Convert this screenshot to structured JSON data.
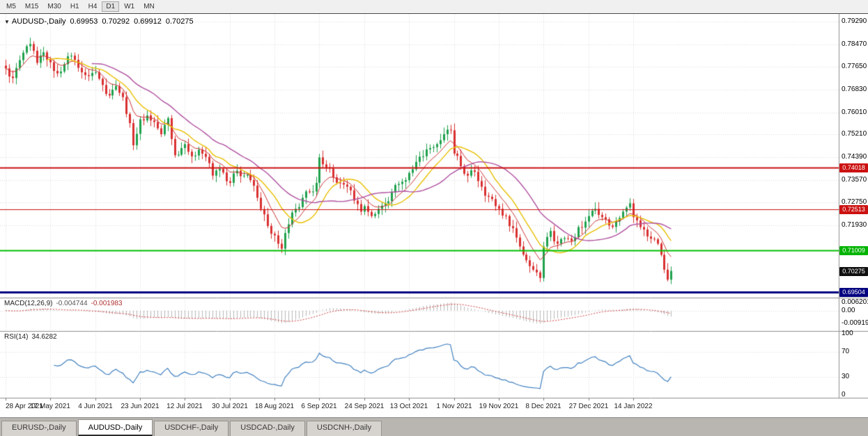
{
  "toolbar": {
    "timeframes": [
      "M5",
      "M15",
      "M30",
      "H1",
      "H4",
      "D1",
      "W1",
      "MN"
    ],
    "active": "D1"
  },
  "chart_header": {
    "collapse_icon": "▼",
    "symbol": "AUDUSD-,Daily",
    "open": "0.69953",
    "high": "0.70292",
    "low": "0.69912",
    "close": "0.70275"
  },
  "price_axis": {
    "labels": [
      "0.79290",
      "0.78470",
      "0.77650",
      "0.76830",
      "0.76010",
      "0.75210",
      "0.74390",
      "0.73570",
      "0.72750",
      "0.71930"
    ],
    "badges": [
      {
        "name": "resistance-upper",
        "text": "0.74018",
        "price": 0.74018,
        "bg": "#cc1111"
      },
      {
        "name": "resistance-lower",
        "text": "0.72513",
        "price": 0.72513,
        "bg": "#cc1111"
      },
      {
        "name": "support-green",
        "text": "0.71009",
        "price": 0.71009,
        "bg": "#00b400"
      },
      {
        "name": "current-price",
        "text": "0.70275",
        "price": 0.70275,
        "bg": "#101010"
      },
      {
        "name": "support-navy",
        "text": "0.69504",
        "price": 0.69504,
        "bg": "#000080"
      }
    ]
  },
  "hlines": [
    {
      "price": 0.74018,
      "color": "#cc1111",
      "width": 2
    },
    {
      "price": 0.72513,
      "color": "#cc1111",
      "width": 1
    },
    {
      "price": 0.71009,
      "color": "#00c000",
      "width": 2
    },
    {
      "price": 0.69504,
      "color": "#000080",
      "width": 3
    }
  ],
  "macd_panel": {
    "label": "MACD(12,26,9)",
    "main_value": "-0.004744",
    "signal_value": "-0.001983",
    "axis_labels": [
      {
        "text": "0.006201",
        "value": 0.006201
      },
      {
        "text": "0.00",
        "value": 0
      },
      {
        "text": "-0.009197",
        "value": -0.009197
      }
    ]
  },
  "rsi_panel": {
    "label": "RSI(14)",
    "value": "34.6282",
    "levels": [
      70,
      30
    ],
    "axis_labels": [
      {
        "text": "100",
        "value": 100
      },
      {
        "text": "70",
        "value": 70
      },
      {
        "text": "30",
        "value": 30
      },
      {
        "text": "0",
        "value": 0
      }
    ]
  },
  "date_axis": {
    "labels": [
      "28 Apr 2021",
      "17 May 2021",
      "4 Jun 2021",
      "23 Jun 2021",
      "12 Jul 2021",
      "30 Jul 2021",
      "18 Aug 2021",
      "6 Sep 2021",
      "24 Sep 2021",
      "13 Oct 2021",
      "1 Nov 2021",
      "19 Nov 2021",
      "8 Dec 2021",
      "27 Dec 2021",
      "14 Jan 2022"
    ],
    "candles_per_label": 13
  },
  "tabs": {
    "items": [
      "EURUSD-,Daily",
      "AUDUSD-,Daily",
      "USDCHF-,Daily",
      "USDCAD-,Daily",
      "USDCNH-,Daily"
    ],
    "active": "AUDUSD-,Daily"
  },
  "colors": {
    "up": "#1fa14d",
    "down": "#d93030",
    "ma_fast": "#cd3333",
    "ma_mid": "#e8c000",
    "ma_slow": "#b050a0",
    "macd_hist": "#b8b8b8",
    "macd_signal": "#d04040",
    "rsi": "#4080c0",
    "grid": "#dadada",
    "separator": "#909090"
  },
  "chart_data": {
    "type": "candlestick",
    "symbol": "AUDUSD",
    "timeframe": "Daily",
    "current_ohlc": {
      "open": 0.69953,
      "high": 0.70292,
      "low": 0.69912,
      "close": 0.70275
    },
    "visible_price_range": [
      0.6931,
      0.7957
    ],
    "candle_count": 194,
    "price_path": [
      [
        0,
        0.776
      ],
      [
        2,
        0.7725
      ],
      [
        4,
        0.779
      ],
      [
        6,
        0.784
      ],
      [
        7,
        0.7848
      ],
      [
        9,
        0.778
      ],
      [
        11,
        0.7818
      ],
      [
        13,
        0.7782
      ],
      [
        15,
        0.7742
      ],
      [
        17,
        0.7775
      ],
      [
        19,
        0.7806
      ],
      [
        21,
        0.7762
      ],
      [
        23,
        0.7736
      ],
      [
        26,
        0.7746
      ],
      [
        28,
        0.77
      ],
      [
        30,
        0.7662
      ],
      [
        32,
        0.7696
      ],
      [
        34,
        0.7656
      ],
      [
        36,
        0.7562
      ],
      [
        37,
        0.7482
      ],
      [
        39,
        0.7576
      ],
      [
        41,
        0.759
      ],
      [
        43,
        0.7566
      ],
      [
        45,
        0.7522
      ],
      [
        47,
        0.758
      ],
      [
        49,
        0.7446
      ],
      [
        52,
        0.7486
      ],
      [
        54,
        0.7442
      ],
      [
        56,
        0.7466
      ],
      [
        58,
        0.744
      ],
      [
        60,
        0.7372
      ],
      [
        62,
        0.7396
      ],
      [
        64,
        0.7352
      ],
      [
        65,
        0.7346
      ],
      [
        67,
        0.739
      ],
      [
        69,
        0.7372
      ],
      [
        71,
        0.7356
      ],
      [
        73,
        0.7292
      ],
      [
        75,
        0.7232
      ],
      [
        77,
        0.7162
      ],
      [
        79,
        0.7126
      ],
      [
        80,
        0.7108
      ],
      [
        82,
        0.7196
      ],
      [
        84,
        0.7252
      ],
      [
        86,
        0.7292
      ],
      [
        88,
        0.7312
      ],
      [
        90,
        0.7346
      ],
      [
        91,
        0.7438
      ],
      [
        93,
        0.7402
      ],
      [
        95,
        0.7366
      ],
      [
        97,
        0.7346
      ],
      [
        99,
        0.7332
      ],
      [
        101,
        0.7282
      ],
      [
        103,
        0.7242
      ],
      [
        104,
        0.7262
      ],
      [
        106,
        0.7226
      ],
      [
        108,
        0.7252
      ],
      [
        110,
        0.7272
      ],
      [
        112,
        0.7312
      ],
      [
        114,
        0.7342
      ],
      [
        116,
        0.7356
      ],
      [
        117,
        0.7382
      ],
      [
        119,
        0.7422
      ],
      [
        121,
        0.7442
      ],
      [
        123,
        0.7472
      ],
      [
        125,
        0.7486
      ],
      [
        127,
        0.7522
      ],
      [
        129,
        0.7536
      ],
      [
        130,
        0.7452
      ],
      [
        132,
        0.7406
      ],
      [
        134,
        0.7372
      ],
      [
        136,
        0.7386
      ],
      [
        138,
        0.7332
      ],
      [
        140,
        0.7296
      ],
      [
        142,
        0.7262
      ],
      [
        143,
        0.7252
      ],
      [
        145,
        0.7226
      ],
      [
        147,
        0.7182
      ],
      [
        149,
        0.7116
      ],
      [
        151,
        0.7066
      ],
      [
        153,
        0.7032
      ],
      [
        155,
        0.7002
      ],
      [
        156,
        0.7116
      ],
      [
        158,
        0.7172
      ],
      [
        160,
        0.7126
      ],
      [
        162,
        0.7146
      ],
      [
        164,
        0.7136
      ],
      [
        166,
        0.7186
      ],
      [
        168,
        0.7206
      ],
      [
        169,
        0.7226
      ],
      [
        171,
        0.7252
      ],
      [
        173,
        0.7222
      ],
      [
        175,
        0.7192
      ],
      [
        177,
        0.7206
      ],
      [
        179,
        0.7242
      ],
      [
        181,
        0.7272
      ],
      [
        182,
        0.7222
      ],
      [
        184,
        0.7186
      ],
      [
        186,
        0.7152
      ],
      [
        188,
        0.7142
      ],
      [
        190,
        0.7086
      ],
      [
        191,
        0.7032
      ],
      [
        192,
        0.6996
      ],
      [
        193,
        0.70275
      ]
    ],
    "support_resistance_levels": [
      0.74018,
      0.72513,
      0.71009,
      0.69504
    ],
    "indicators": {
      "moving_averages": [
        {
          "type": "ema",
          "period": 8
        },
        {
          "type": "sma",
          "period": 13
        },
        {
          "type": "sma",
          "period": 26
        }
      ],
      "macd": {
        "fast": 12,
        "slow": 26,
        "signal": 9,
        "main": -0.004744,
        "signal_value": -0.001983
      },
      "rsi": {
        "period": 14,
        "value": 34.6282
      }
    }
  }
}
